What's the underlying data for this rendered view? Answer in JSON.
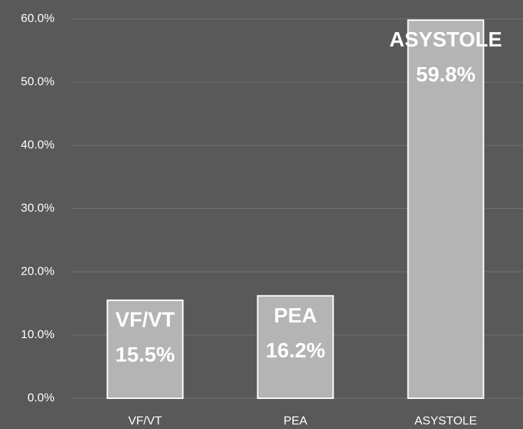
{
  "chart_data": {
    "type": "bar",
    "categories": [
      "VF/VT",
      "PEA",
      "ASYSTOLE"
    ],
    "values": [
      15.5,
      16.2,
      59.8
    ],
    "value_labels": [
      "15.5%",
      "16.2%",
      "59.8%"
    ],
    "color": "#b4b4b4",
    "ylim": [
      0,
      60
    ],
    "yticks": [
      {
        "value": 0,
        "label": "0.0%"
      },
      {
        "value": 10,
        "label": "10.0%"
      },
      {
        "value": 20,
        "label": "20.0%"
      },
      {
        "value": 30,
        "label": "30.0%"
      },
      {
        "value": 40,
        "label": "40.0%"
      },
      {
        "value": 50,
        "label": "50.0%"
      },
      {
        "value": 60,
        "label": "60.0%"
      }
    ],
    "grid": true
  }
}
